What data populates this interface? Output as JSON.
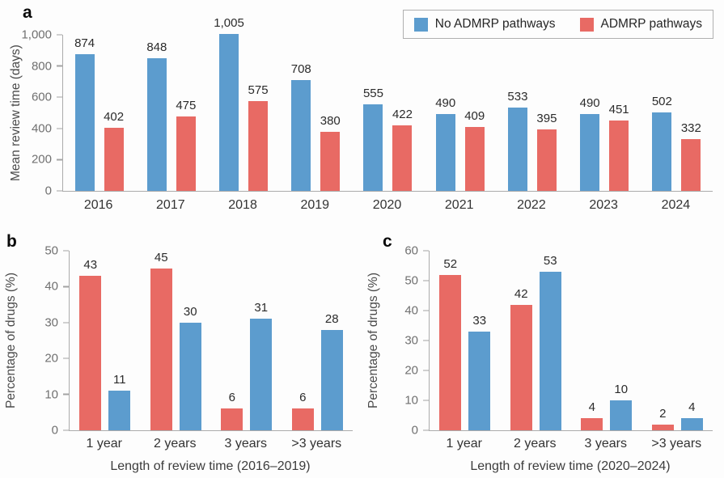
{
  "figure": {
    "panel_labels": {
      "a": "a",
      "b": "b",
      "c": "c"
    },
    "colors": {
      "no_admrp": "#5C9CCE",
      "admrp": "#E86A64"
    },
    "legend": {
      "items": [
        {
          "label": "No ADMRP pathways",
          "color_key": "no_admrp"
        },
        {
          "label": "ADMRP pathways",
          "color_key": "admrp"
        }
      ]
    }
  },
  "chart_data": [
    {
      "panel": "a",
      "type": "bar",
      "categories": [
        "2016",
        "2017",
        "2018",
        "2019",
        "2020",
        "2021",
        "2022",
        "2023",
        "2024"
      ],
      "series": [
        {
          "name": "No ADMRP pathways",
          "color_key": "no_admrp",
          "values": [
            874,
            848,
            1005,
            708,
            555,
            490,
            533,
            490,
            502
          ],
          "labels": [
            "874",
            "848",
            "1,005",
            "708",
            "555",
            "490",
            "533",
            "490",
            "502"
          ]
        },
        {
          "name": "ADMRP pathways",
          "color_key": "admrp",
          "values": [
            402,
            475,
            575,
            380,
            422,
            409,
            395,
            451,
            332
          ],
          "labels": [
            "402",
            "475",
            "575",
            "380",
            "422",
            "409",
            "395",
            "451",
            "332"
          ]
        }
      ],
      "xlabel": "",
      "ylabel": "Mean review time (days)",
      "ylim": [
        0,
        1000
      ],
      "yticks": [
        {
          "value": 0,
          "label": "0"
        },
        {
          "value": 200,
          "label": "200"
        },
        {
          "value": 400,
          "label": "400"
        },
        {
          "value": 600,
          "label": "600"
        },
        {
          "value": 800,
          "label": "800"
        },
        {
          "value": 1000,
          "label": "1,000"
        }
      ],
      "grid": false,
      "legend_position": "top-right"
    },
    {
      "panel": "b",
      "type": "bar",
      "categories": [
        "1 year",
        "2 years",
        "3 years",
        ">3 years"
      ],
      "series": [
        {
          "name": "ADMRP pathways",
          "color_key": "admrp",
          "values": [
            43,
            45,
            6,
            6
          ],
          "labels": [
            "43",
            "45",
            "6",
            "6"
          ]
        },
        {
          "name": "No ADMRP pathways",
          "color_key": "no_admrp",
          "values": [
            11,
            30,
            31,
            28
          ],
          "labels": [
            "11",
            "30",
            "31",
            "28"
          ]
        }
      ],
      "xlabel": "Length of review time (2016–2019)",
      "ylabel": "Percentage of drugs (%)",
      "ylim": [
        0,
        50
      ],
      "yticks": [
        {
          "value": 0,
          "label": "0"
        },
        {
          "value": 10,
          "label": "10"
        },
        {
          "value": 20,
          "label": "20"
        },
        {
          "value": 30,
          "label": "30"
        },
        {
          "value": 40,
          "label": "40"
        },
        {
          "value": 50,
          "label": "50"
        }
      ],
      "grid": false,
      "legend_position": "none"
    },
    {
      "panel": "c",
      "type": "bar",
      "categories": [
        "1 year",
        "2 years",
        "3 years",
        ">3 years"
      ],
      "series": [
        {
          "name": "ADMRP pathways",
          "color_key": "admrp",
          "values": [
            52,
            42,
            4,
            2
          ],
          "labels": [
            "52",
            "42",
            "4",
            "2"
          ]
        },
        {
          "name": "No ADMRP pathways",
          "color_key": "no_admrp",
          "values": [
            33,
            53,
            10,
            4
          ],
          "labels": [
            "33",
            "53",
            "10",
            "4"
          ]
        }
      ],
      "xlabel": "Length of review time (2020–2024)",
      "ylabel": "Percentage of drugs (%)",
      "ylim": [
        0,
        60
      ],
      "yticks": [
        {
          "value": 0,
          "label": "0"
        },
        {
          "value": 10,
          "label": "10"
        },
        {
          "value": 20,
          "label": "20"
        },
        {
          "value": 30,
          "label": "30"
        },
        {
          "value": 40,
          "label": "40"
        },
        {
          "value": 50,
          "label": "50"
        },
        {
          "value": 60,
          "label": "60"
        }
      ],
      "grid": false,
      "legend_position": "none"
    }
  ]
}
